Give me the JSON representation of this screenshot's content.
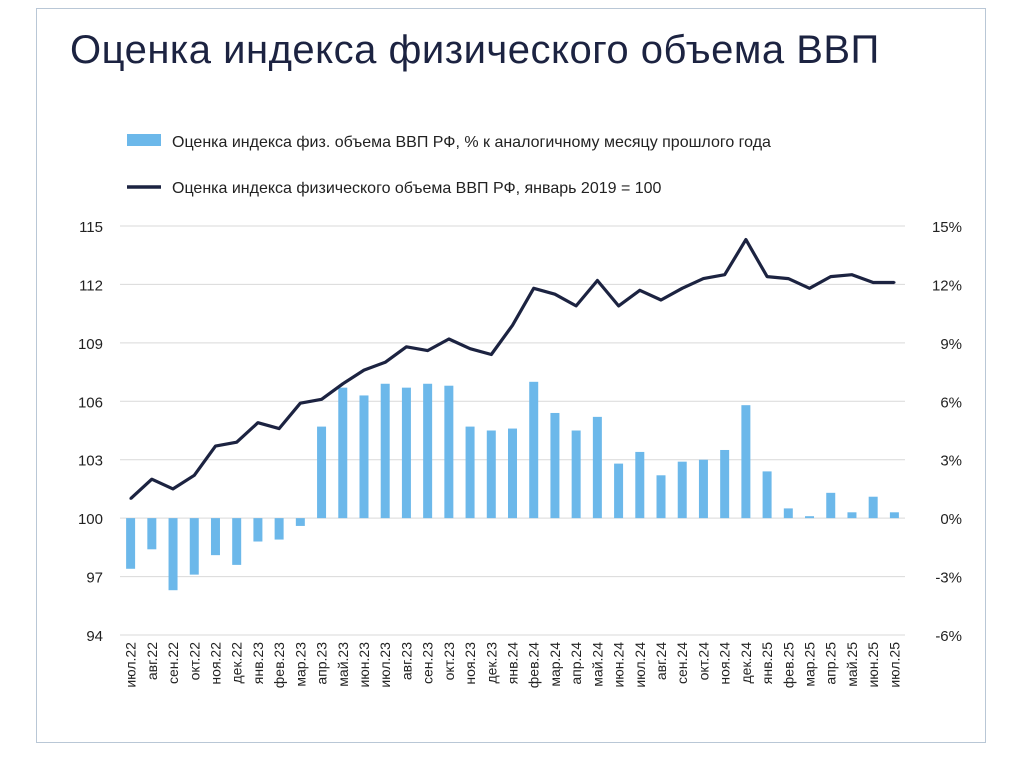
{
  "title": "Оценка индекса физического объема ВВП",
  "chart_data": {
    "type": "bar+line",
    "categories": [
      "июл.22",
      "авг.22",
      "сен.22",
      "окт.22",
      "ноя.22",
      "дек.22",
      "янв.23",
      "фев.23",
      "мар.23",
      "апр.23",
      "май.23",
      "июн.23",
      "июл.23",
      "авг.23",
      "сен.23",
      "окт.23",
      "ноя.23",
      "дек.23",
      "янв.24",
      "фев.24",
      "мар.24",
      "апр.24",
      "май.24",
      "июн.24",
      "июл.24",
      "авг.24",
      "сен.24",
      "окт.24",
      "ноя.24",
      "дек.24",
      "янв.25",
      "фев.25",
      "мар.25",
      "апр.25",
      "май.25",
      "июн.25",
      "июл.25"
    ],
    "series": [
      {
        "name": "Оценка индекса физ. объема ВВП РФ, % к аналогичному месяцу прошлого года",
        "type": "bar",
        "axis": "right",
        "color": "#6cb8ea",
        "values": [
          -2.6,
          -1.6,
          -3.7,
          -2.9,
          -1.9,
          -2.4,
          -1.2,
          -1.1,
          -0.4,
          4.7,
          6.7,
          6.3,
          6.9,
          6.7,
          6.9,
          6.8,
          4.7,
          4.5,
          4.6,
          7.0,
          5.4,
          4.5,
          5.2,
          2.8,
          3.4,
          2.2,
          2.9,
          3.0,
          3.5,
          5.8,
          2.4,
          0.5,
          0.1,
          1.3,
          0.3,
          1.1,
          0.3
        ]
      },
      {
        "name": "Оценка индекса физического объема ВВП РФ, январь 2019 = 100",
        "type": "line",
        "axis": "left",
        "color": "#1c2341",
        "values": [
          101.0,
          102.0,
          101.5,
          102.2,
          103.7,
          103.9,
          104.9,
          104.6,
          105.9,
          106.1,
          106.9,
          107.6,
          108.0,
          108.8,
          108.6,
          109.2,
          108.7,
          108.4,
          109.9,
          111.8,
          111.5,
          110.9,
          112.2,
          110.9,
          111.7,
          111.2,
          111.8,
          112.3,
          112.5,
          114.3,
          112.4,
          112.3,
          111.8,
          112.4,
          112.5,
          112.1,
          112.1
        ]
      }
    ],
    "left_axis": {
      "ylim": [
        94,
        115
      ],
      "ticks": [
        "94",
        "97",
        "100",
        "103",
        "106",
        "109",
        "112",
        "115"
      ]
    },
    "right_axis": {
      "ylim": [
        -6,
        15
      ],
      "ticks": [
        "-6%",
        "-3%",
        "0%",
        "3%",
        "6%",
        "9%",
        "12%",
        "15%"
      ]
    },
    "grid": true,
    "legend_position": "top"
  }
}
